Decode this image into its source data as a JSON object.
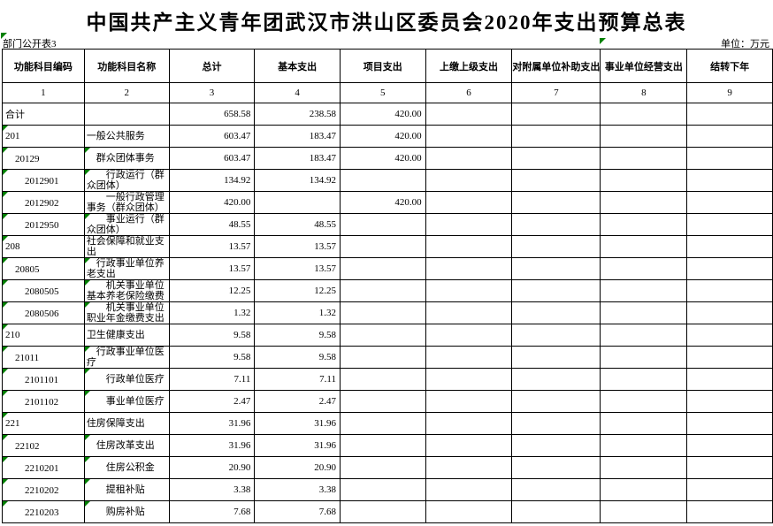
{
  "page": {
    "title": "中国共产主义青年团武汉市洪山区委员会2020年支出预算总表",
    "sheet_label": "部门公开表3",
    "unit_label": "单位：万元"
  },
  "colors": {
    "error_indicator_green": "#008000",
    "grid_border": "#000000",
    "background": "#ffffff",
    "text": "#000000"
  },
  "table": {
    "columns": [
      "功能科目编码",
      "功能科目名称",
      "总计",
      "基本支出",
      "项目支出",
      "上缴上级支出",
      "对附属单位补助支出",
      "事业单位经营支出",
      "结转下年"
    ],
    "column_numbers": [
      "1",
      "2",
      "3",
      "4",
      "5",
      "6",
      "7",
      "8",
      "9"
    ],
    "value_keys": [
      "total",
      "basic",
      "project",
      "upper",
      "subsidy",
      "operating",
      "carryover"
    ],
    "rows": [
      {
        "code": "合计",
        "name": "",
        "total": "658.58",
        "basic": "238.58",
        "project": "420.00",
        "upper": "",
        "subsidy": "",
        "operating": "",
        "carryover": "",
        "code_flag": false,
        "name_flag": false
      },
      {
        "code": "201",
        "name": "一般公共服务",
        "total": "603.47",
        "basic": "183.47",
        "project": "420.00",
        "upper": "",
        "subsidy": "",
        "operating": "",
        "carryover": "",
        "code_flag": true,
        "name_flag": false
      },
      {
        "code": "　20129",
        "name": "　群众团体事务",
        "total": "603.47",
        "basic": "183.47",
        "project": "420.00",
        "upper": "",
        "subsidy": "",
        "operating": "",
        "carryover": "",
        "code_flag": true,
        "name_flag": true
      },
      {
        "code": "　　2012901",
        "name": "　　行政运行（群众团体）",
        "total": "134.92",
        "basic": "134.92",
        "project": "",
        "upper": "",
        "subsidy": "",
        "operating": "",
        "carryover": "",
        "code_flag": true,
        "name_flag": true
      },
      {
        "code": "　　2012902",
        "name": "　　一般行政管理事务（群众团体）",
        "total": "420.00",
        "basic": "",
        "project": "420.00",
        "upper": "",
        "subsidy": "",
        "operating": "",
        "carryover": "",
        "code_flag": true,
        "name_flag": false
      },
      {
        "code": "　　2012950",
        "name": "　　事业运行（群众团体）",
        "total": "48.55",
        "basic": "48.55",
        "project": "",
        "upper": "",
        "subsidy": "",
        "operating": "",
        "carryover": "",
        "code_flag": true,
        "name_flag": true
      },
      {
        "code": "208",
        "name": "社会保障和就业支出",
        "total": "13.57",
        "basic": "13.57",
        "project": "",
        "upper": "",
        "subsidy": "",
        "operating": "",
        "carryover": "",
        "code_flag": true,
        "name_flag": false
      },
      {
        "code": "　20805",
        "name": "　行政事业单位养老支出",
        "total": "13.57",
        "basic": "13.57",
        "project": "",
        "upper": "",
        "subsidy": "",
        "operating": "",
        "carryover": "",
        "code_flag": true,
        "name_flag": true
      },
      {
        "code": "　　2080505",
        "name": "　　机关事业单位基本养老保险缴费",
        "total": "12.25",
        "basic": "12.25",
        "project": "",
        "upper": "",
        "subsidy": "",
        "operating": "",
        "carryover": "",
        "code_flag": true,
        "name_flag": true
      },
      {
        "code": "　　2080506",
        "name": "　　机关事业单位职业年金缴费支出",
        "total": "1.32",
        "basic": "1.32",
        "project": "",
        "upper": "",
        "subsidy": "",
        "operating": "",
        "carryover": "",
        "code_flag": true,
        "name_flag": true
      },
      {
        "code": "210",
        "name": "卫生健康支出",
        "total": "9.58",
        "basic": "9.58",
        "project": "",
        "upper": "",
        "subsidy": "",
        "operating": "",
        "carryover": "",
        "code_flag": true,
        "name_flag": false
      },
      {
        "code": "　21011",
        "name": "　行政事业单位医疗",
        "total": "9.58",
        "basic": "9.58",
        "project": "",
        "upper": "",
        "subsidy": "",
        "operating": "",
        "carryover": "",
        "code_flag": true,
        "name_flag": true
      },
      {
        "code": "　　2101101",
        "name": "　　行政单位医疗",
        "total": "7.11",
        "basic": "7.11",
        "project": "",
        "upper": "",
        "subsidy": "",
        "operating": "",
        "carryover": "",
        "code_flag": true,
        "name_flag": true
      },
      {
        "code": "　　2101102",
        "name": "　　事业单位医疗",
        "total": "2.47",
        "basic": "2.47",
        "project": "",
        "upper": "",
        "subsidy": "",
        "operating": "",
        "carryover": "",
        "code_flag": true,
        "name_flag": true
      },
      {
        "code": "221",
        "name": "住房保障支出",
        "total": "31.96",
        "basic": "31.96",
        "project": "",
        "upper": "",
        "subsidy": "",
        "operating": "",
        "carryover": "",
        "code_flag": true,
        "name_flag": false
      },
      {
        "code": "　22102",
        "name": "　住房改革支出",
        "total": "31.96",
        "basic": "31.96",
        "project": "",
        "upper": "",
        "subsidy": "",
        "operating": "",
        "carryover": "",
        "code_flag": true,
        "name_flag": true
      },
      {
        "code": "　　2210201",
        "name": "　　住房公积金",
        "total": "20.90",
        "basic": "20.90",
        "project": "",
        "upper": "",
        "subsidy": "",
        "operating": "",
        "carryover": "",
        "code_flag": true,
        "name_flag": true
      },
      {
        "code": "　　2210202",
        "name": "　　提租补贴",
        "total": "3.38",
        "basic": "3.38",
        "project": "",
        "upper": "",
        "subsidy": "",
        "operating": "",
        "carryover": "",
        "code_flag": true,
        "name_flag": true
      },
      {
        "code": "　　2210203",
        "name": "　　购房补贴",
        "total": "7.68",
        "basic": "7.68",
        "project": "",
        "upper": "",
        "subsidy": "",
        "operating": "",
        "carryover": "",
        "code_flag": true,
        "name_flag": true
      }
    ]
  }
}
